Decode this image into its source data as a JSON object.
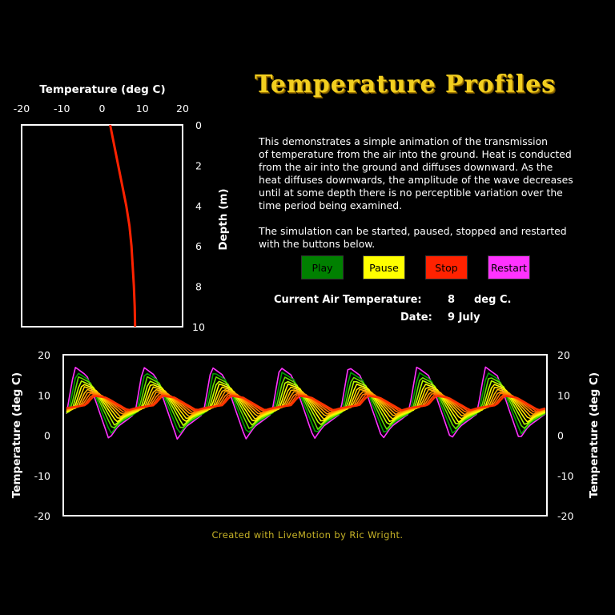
{
  "title": "Temperature Profiles",
  "description_lines": [
    "This demonstrates a simple animation of the transmission",
    "of temperature from the air into the ground. Heat is conducted",
    "from the air into the ground and diffuses downward. As the",
    "heat diffuses downwards, the amplitude of the wave decreases",
    "until at some depth there is no perceptible variation over the",
    "time period being examined.",
    "",
    "The simulation can be started, paused, stopped and restarted",
    "with the buttons below."
  ],
  "buttons": {
    "play": {
      "label": "Play",
      "color": "#008000",
      "text_color": "#000000"
    },
    "pause": {
      "label": "Pause",
      "color": "#ffff00",
      "text_color": "#000000"
    },
    "stop": {
      "label": "Stop",
      "color": "#ff2200",
      "text_color": "#000000"
    },
    "restart": {
      "label": "Restart",
      "color": "#ff33ff",
      "text_color": "#000000"
    }
  },
  "status": {
    "air_temp_label": "Current Air Temperature:",
    "air_temp_value": "8",
    "air_temp_unit": "deg C.",
    "date_label": "Date:",
    "date_value": "9 July"
  },
  "credit": "Created with LiveMotion by Ric Wright.",
  "chart_data": [
    {
      "type": "line",
      "orientation": "depth-profile",
      "title": "Temperature (deg C)",
      "xlabel": "Temperature (deg C)",
      "ylabel": "Depth (m)",
      "xlim": [
        -20,
        20
      ],
      "ylim": [
        0,
        10
      ],
      "y_inverted": true,
      "x_ticks": [
        -20,
        -10,
        0,
        10,
        20
      ],
      "y_ticks": [
        0,
        2,
        4,
        6,
        8,
        10
      ],
      "grid": false,
      "series": [
        {
          "color": "#ff2200",
          "depth": [
            0,
            1,
            2,
            3,
            4,
            5,
            6,
            7,
            8,
            9,
            10
          ],
          "temperature": [
            2.0,
            3.0,
            4.0,
            5.0,
            6.0,
            6.8,
            7.3,
            7.6,
            7.9,
            8.1,
            8.2
          ]
        }
      ]
    },
    {
      "type": "line",
      "orientation": "time-series",
      "xlabel": "",
      "ylabel": "Temperature (deg C)",
      "ylim": [
        -20,
        20
      ],
      "y_ticks": [
        -20,
        -10,
        0,
        10,
        20
      ],
      "grid": false,
      "x_range": [
        0,
        100
      ],
      "series_colors": [
        "#ff33ff",
        "#00a000",
        "#66dd00",
        "#bbff00",
        "#ffff00",
        "#ffdd00",
        "#ffbb00",
        "#ff9900",
        "#ff7700",
        "#ff5500",
        "#ff3300"
      ],
      "mean": 8,
      "air_amplitude": 9,
      "amplitude_decay": [
        1.0,
        0.85,
        0.73,
        0.62,
        0.53,
        0.45,
        0.38,
        0.32,
        0.27,
        0.23,
        0.2
      ],
      "cycles": 7,
      "peak_temperatures": [
        18,
        18.5,
        17,
        17,
        18,
        18.5,
        17
      ]
    }
  ]
}
